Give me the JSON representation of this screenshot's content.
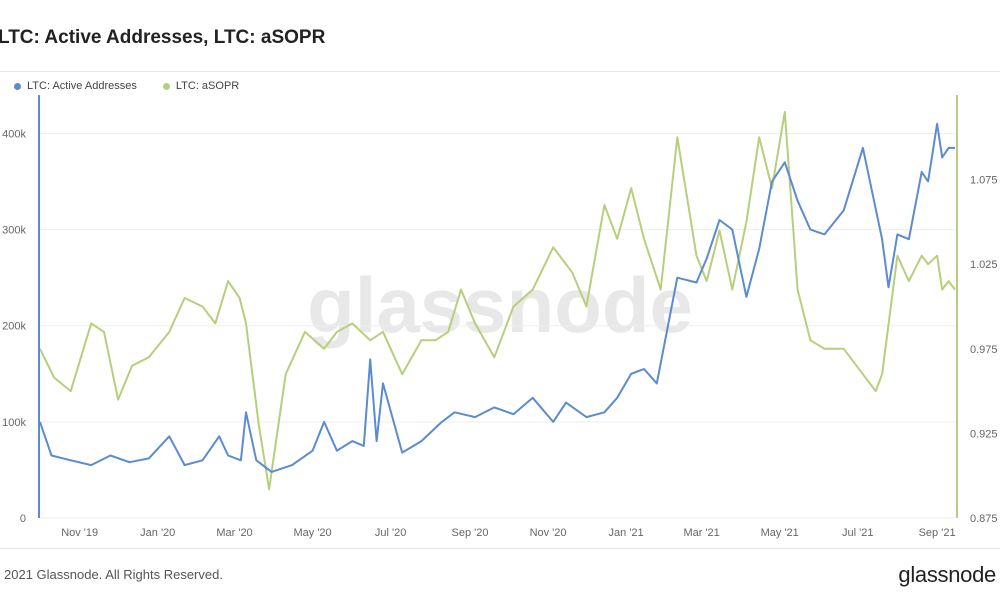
{
  "title": "LTC: Active Addresses, LTC: aSOPR",
  "footer": {
    "copyright": "2021 Glassnode. All Rights Reserved.",
    "logo": "glassnode"
  },
  "watermark": "glassnode",
  "colors": {
    "active_addresses": "#5b8bd0",
    "asopr": "#b7cf7c",
    "grid": "#eeeeee",
    "axis_text": "#666666"
  },
  "chart_data": {
    "type": "line",
    "title": "LTC: Active Addresses, LTC: aSOPR",
    "x_range": [
      "2019-10-01",
      "2021-09-15"
    ],
    "x_ticks": [
      "Nov '19",
      "Jan '20",
      "Mar '20",
      "May '20",
      "Jul '20",
      "Sep '20",
      "Nov '20",
      "Jan '21",
      "Mar '21",
      "May '21",
      "Jul '21",
      "Sep '21"
    ],
    "y_left": {
      "ticks": [
        "0",
        "100k",
        "200k",
        "300k",
        "400k"
      ],
      "range": [
        0,
        440000
      ]
    },
    "y_right": {
      "ticks": [
        "0.875",
        "0.925",
        "0.975",
        "1.025",
        "1.075"
      ],
      "range": [
        0.875,
        1.125
      ]
    },
    "legend_position": "top-left",
    "grid": true,
    "series": [
      {
        "name": "LTC: Active Addresses",
        "axis": "left",
        "x": [
          "2019-10-01",
          "2019-10-10",
          "2019-10-25",
          "2019-11-10",
          "2019-11-25",
          "2019-12-10",
          "2019-12-25",
          "2020-01-10",
          "2020-01-22",
          "2020-02-05",
          "2020-02-18",
          "2020-02-25",
          "2020-03-06",
          "2020-03-10",
          "2020-03-18",
          "2020-03-30",
          "2020-04-15",
          "2020-05-01",
          "2020-05-10",
          "2020-05-20",
          "2020-06-01",
          "2020-06-10",
          "2020-06-15",
          "2020-06-20",
          "2020-06-25",
          "2020-07-10",
          "2020-07-25",
          "2020-08-10",
          "2020-08-20",
          "2020-09-05",
          "2020-09-20",
          "2020-10-05",
          "2020-10-20",
          "2020-11-05",
          "2020-11-15",
          "2020-12-01",
          "2020-12-15",
          "2020-12-25",
          "2021-01-05",
          "2021-01-15",
          "2021-01-25",
          "2021-02-10",
          "2021-02-25",
          "2021-03-05",
          "2021-03-15",
          "2021-03-25",
          "2021-04-05",
          "2021-04-15",
          "2021-04-25",
          "2021-05-05",
          "2021-05-15",
          "2021-05-25",
          "2021-06-05",
          "2021-06-20",
          "2021-07-05",
          "2021-07-20",
          "2021-07-25",
          "2021-08-01",
          "2021-08-10",
          "2021-08-20",
          "2021-08-25",
          "2021-09-01",
          "2021-09-05",
          "2021-09-10",
          "2021-09-15"
        ],
        "y": [
          100000,
          65000,
          60000,
          55000,
          65000,
          58000,
          62000,
          85000,
          55000,
          60000,
          85000,
          65000,
          60000,
          110000,
          60000,
          48000,
          55000,
          70000,
          100000,
          70000,
          80000,
          75000,
          165000,
          80000,
          140000,
          68000,
          80000,
          100000,
          110000,
          105000,
          115000,
          108000,
          125000,
          100000,
          120000,
          105000,
          110000,
          125000,
          150000,
          155000,
          140000,
          250000,
          245000,
          270000,
          310000,
          300000,
          230000,
          280000,
          350000,
          370000,
          330000,
          300000,
          295000,
          320000,
          385000,
          290000,
          240000,
          295000,
          290000,
          360000,
          350000,
          410000,
          375000,
          385000,
          385000
        ]
      },
      {
        "name": "LTC: aSOPR",
        "axis": "right",
        "x": [
          "2019-10-01",
          "2019-10-12",
          "2019-10-25",
          "2019-11-10",
          "2019-11-20",
          "2019-12-01",
          "2019-12-12",
          "2019-12-25",
          "2020-01-10",
          "2020-01-22",
          "2020-02-05",
          "2020-02-15",
          "2020-02-25",
          "2020-03-05",
          "2020-03-10",
          "2020-03-15",
          "2020-03-20",
          "2020-03-28",
          "2020-04-10",
          "2020-04-25",
          "2020-05-10",
          "2020-05-20",
          "2020-06-01",
          "2020-06-15",
          "2020-06-25",
          "2020-07-10",
          "2020-07-25",
          "2020-08-05",
          "2020-08-15",
          "2020-08-25",
          "2020-09-05",
          "2020-09-20",
          "2020-10-05",
          "2020-10-20",
          "2020-11-05",
          "2020-11-20",
          "2020-12-01",
          "2020-12-15",
          "2020-12-25",
          "2021-01-05",
          "2021-01-15",
          "2021-01-28",
          "2021-02-10",
          "2021-02-25",
          "2021-03-05",
          "2021-03-15",
          "2021-03-25",
          "2021-04-05",
          "2021-04-15",
          "2021-04-25",
          "2021-05-05",
          "2021-05-15",
          "2021-05-25",
          "2021-06-05",
          "2021-06-20",
          "2021-07-05",
          "2021-07-15",
          "2021-07-20",
          "2021-08-01",
          "2021-08-10",
          "2021-08-20",
          "2021-08-25",
          "2021-09-01",
          "2021-09-05",
          "2021-09-10",
          "2021-09-15"
        ],
        "y": [
          0.975,
          0.958,
          0.95,
          0.99,
          0.985,
          0.945,
          0.965,
          0.97,
          0.985,
          1.005,
          1.0,
          0.99,
          1.015,
          1.005,
          0.99,
          0.96,
          0.93,
          0.892,
          0.96,
          0.985,
          0.975,
          0.985,
          0.99,
          0.98,
          0.985,
          0.96,
          0.98,
          0.98,
          0.985,
          1.01,
          0.99,
          0.97,
          1.0,
          1.01,
          1.035,
          1.02,
          1.0,
          1.06,
          1.04,
          1.07,
          1.04,
          1.01,
          1.1,
          1.03,
          1.015,
          1.045,
          1.01,
          1.05,
          1.1,
          1.07,
          1.115,
          1.01,
          0.98,
          0.975,
          0.975,
          0.96,
          0.95,
          0.96,
          1.03,
          1.015,
          1.03,
          1.025,
          1.03,
          1.01,
          1.015,
          1.01
        ]
      }
    ]
  }
}
